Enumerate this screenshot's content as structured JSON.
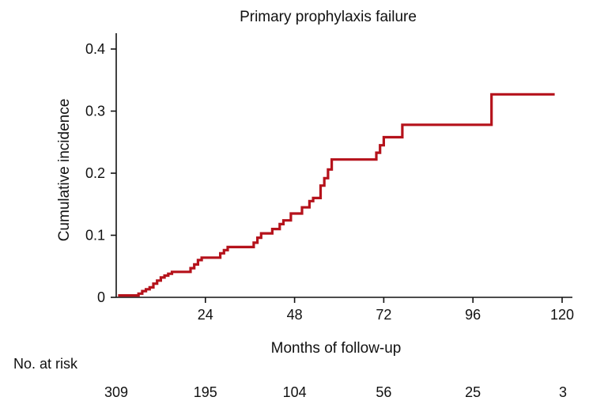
{
  "chart_data": {
    "type": "line",
    "step": true,
    "title": "Primary prophylaxis failure",
    "xlabel": "Months of follow-up",
    "ylabel": "Cumulative incidence",
    "xlim": [
      0,
      122
    ],
    "ylim": [
      0,
      0.4
    ],
    "grid": false,
    "x_ticks": [
      {
        "value": 24,
        "label": "24"
      },
      {
        "value": 48,
        "label": "48"
      },
      {
        "value": 72,
        "label": "72"
      },
      {
        "value": 96,
        "label": "96"
      },
      {
        "value": 120,
        "label": "120"
      }
    ],
    "y_ticks": [
      {
        "value": 0,
        "label": "0"
      },
      {
        "value": 0.1,
        "label": "0.1"
      },
      {
        "value": 0.2,
        "label": "0.2"
      },
      {
        "value": 0.3,
        "label": "0.3"
      },
      {
        "value": 0.4,
        "label": "0.4"
      }
    ],
    "series": [
      {
        "color": "#b5121b",
        "x": [
          0.5,
          6,
          7,
          8,
          9,
          10,
          11,
          12,
          13,
          14,
          15,
          20,
          21,
          22,
          23,
          28,
          29,
          30,
          37,
          38,
          39,
          42,
          44,
          45,
          47,
          50,
          52,
          53,
          55,
          56,
          57,
          58,
          70,
          71,
          72,
          77,
          101,
          118
        ],
        "y": [
          0.003,
          0.006,
          0.01,
          0.013,
          0.016,
          0.022,
          0.027,
          0.032,
          0.035,
          0.038,
          0.041,
          0.047,
          0.053,
          0.06,
          0.064,
          0.071,
          0.076,
          0.081,
          0.088,
          0.096,
          0.103,
          0.11,
          0.118,
          0.124,
          0.135,
          0.145,
          0.155,
          0.16,
          0.18,
          0.192,
          0.206,
          0.222,
          0.233,
          0.245,
          0.258,
          0.278,
          0.327,
          0.327
        ]
      }
    ]
  },
  "risk_table": {
    "label": "No. at risk",
    "timepoints": [
      0,
      24,
      48,
      72,
      96,
      120
    ],
    "values": [
      "309",
      "195",
      "104",
      "56",
      "25",
      "3"
    ]
  }
}
